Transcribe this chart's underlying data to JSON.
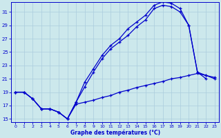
{
  "xlabel": "Graphe des températures (°C)",
  "bg_color": "#cce8ec",
  "grid_color": "#aaccdd",
  "line_color": "#0000cc",
  "xlim_min": -0.5,
  "xlim_max": 23.5,
  "ylim_min": 14.5,
  "ylim_max": 32.5,
  "yticks": [
    15,
    17,
    19,
    21,
    23,
    25,
    27,
    29,
    31
  ],
  "xticks": [
    0,
    1,
    2,
    3,
    4,
    5,
    6,
    7,
    8,
    9,
    10,
    11,
    12,
    13,
    14,
    15,
    16,
    17,
    18,
    19,
    20,
    21,
    22,
    23
  ],
  "curve1_x": [
    0,
    1,
    2,
    3,
    4,
    5,
    6,
    7,
    8,
    9,
    10,
    11,
    12,
    13,
    14,
    15,
    16,
    17,
    18,
    19,
    20,
    21,
    22
  ],
  "curve1_y": [
    19.0,
    19.0,
    18.0,
    16.5,
    16.5,
    16.0,
    15.0,
    17.5,
    20.5,
    22.5,
    24.5,
    26.0,
    27.0,
    28.5,
    29.5,
    30.5,
    32.0,
    32.5,
    32.3,
    31.5,
    29.0,
    22.0,
    21.0
  ],
  "curve2_x": [
    0,
    1,
    2,
    3,
    4,
    5,
    6,
    7,
    8,
    9,
    10,
    11,
    12,
    13,
    14,
    15,
    16,
    17,
    18,
    19,
    20,
    21,
    22,
    23
  ],
  "curve2_y": [
    19.0,
    19.0,
    18.0,
    16.5,
    16.5,
    16.0,
    15.0,
    17.5,
    19.8,
    22.0,
    24.0,
    25.5,
    26.5,
    27.5,
    28.8,
    29.8,
    31.5,
    32.0,
    31.8,
    31.0,
    29.0,
    22.0,
    21.5,
    21.0
  ],
  "curve3_x": [
    0,
    1,
    2,
    3,
    4,
    5,
    6,
    7,
    8,
    9,
    10,
    11,
    12,
    13,
    14,
    15,
    16,
    17,
    18,
    19,
    20,
    21,
    22,
    23
  ],
  "curve3_y": [
    19.0,
    19.0,
    18.0,
    16.5,
    16.5,
    16.0,
    15.0,
    17.2,
    17.5,
    17.8,
    18.2,
    18.5,
    19.0,
    19.3,
    19.7,
    20.0,
    20.3,
    20.6,
    21.0,
    21.2,
    21.5,
    21.8,
    21.5,
    21.2
  ]
}
